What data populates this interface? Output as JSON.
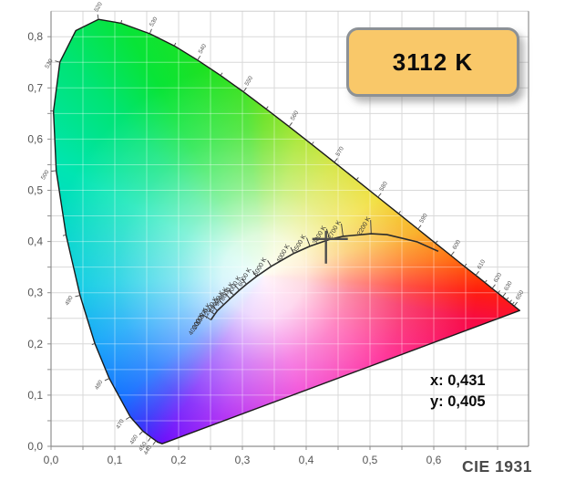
{
  "badge": {
    "label": "3112 K"
  },
  "readout": {
    "x": "x: 0,431",
    "y": "y: 0,405"
  },
  "footer": {
    "label": "CIE 1931"
  },
  "colors": {
    "badge_bg": "#F9C869",
    "badge_border": "#8C9196",
    "grid": "#D9D9D9",
    "grid_on_color": "rgba(255,255,255,0.38)",
    "axis": "#8F8F8F",
    "cross": "#4D4D4D",
    "outline": "#1A1A1A",
    "locus_line": "#2B2B2B"
  },
  "chart_data": {
    "type": "chromaticity-diagram",
    "title": "CIE 1931",
    "measured_point": {
      "cct": "3112 K",
      "x": 0.431,
      "y": 0.405
    },
    "x_axis": {
      "min": 0,
      "max": 0.75,
      "grid_step": 0.05,
      "label_step": 0.1,
      "tick_labels": [
        "0,0",
        "0,1",
        "0,2",
        "0,3",
        "0,4",
        "0,5",
        "0,6"
      ]
    },
    "y_axis": {
      "min": 0,
      "max": 0.85,
      "grid_step": 0.05,
      "label_step": 0.1,
      "tick_labels": [
        "0,0",
        "0,1",
        "0,2",
        "0,3",
        "0,4",
        "0,5",
        "0,6",
        "0,7",
        "0,8"
      ]
    },
    "neutral_center": {
      "x": 0.333,
      "y": 0.333
    },
    "spectral_locus": [
      {
        "nm": 380,
        "x": 0.1741,
        "y": 0.005
      },
      {
        "nm": 410,
        "x": 0.1666,
        "y": 0.0086
      },
      {
        "nm": 440,
        "x": 0.1644,
        "y": 0.0109
      },
      {
        "nm": 450,
        "x": 0.1566,
        "y": 0.0177
      },
      {
        "nm": 460,
        "x": 0.144,
        "y": 0.0297
      },
      {
        "nm": 470,
        "x": 0.1241,
        "y": 0.0578
      },
      {
        "nm": 480,
        "x": 0.0913,
        "y": 0.1327
      },
      {
        "nm": 485,
        "x": 0.0687,
        "y": 0.2007
      },
      {
        "nm": 490,
        "x": 0.0454,
        "y": 0.295
      },
      {
        "nm": 495,
        "x": 0.0235,
        "y": 0.4127
      },
      {
        "nm": 500,
        "x": 0.0082,
        "y": 0.5384
      },
      {
        "nm": 505,
        "x": 0.0039,
        "y": 0.6548
      },
      {
        "nm": 510,
        "x": 0.0139,
        "y": 0.7502
      },
      {
        "nm": 515,
        "x": 0.0389,
        "y": 0.812
      },
      {
        "nm": 520,
        "x": 0.0743,
        "y": 0.8338
      },
      {
        "nm": 525,
        "x": 0.1096,
        "y": 0.8263
      },
      {
        "nm": 530,
        "x": 0.1547,
        "y": 0.8059
      },
      {
        "nm": 535,
        "x": 0.1931,
        "y": 0.7822
      },
      {
        "nm": 540,
        "x": 0.2296,
        "y": 0.7543
      },
      {
        "nm": 545,
        "x": 0.2658,
        "y": 0.7243
      },
      {
        "nm": 550,
        "x": 0.3016,
        "y": 0.6923
      },
      {
        "nm": 555,
        "x": 0.3373,
        "y": 0.6588
      },
      {
        "nm": 560,
        "x": 0.3731,
        "y": 0.6245
      },
      {
        "nm": 565,
        "x": 0.4087,
        "y": 0.5896
      },
      {
        "nm": 570,
        "x": 0.4441,
        "y": 0.5547
      },
      {
        "nm": 575,
        "x": 0.4788,
        "y": 0.5202
      },
      {
        "nm": 580,
        "x": 0.5125,
        "y": 0.4866
      },
      {
        "nm": 585,
        "x": 0.5448,
        "y": 0.4544
      },
      {
        "nm": 590,
        "x": 0.5752,
        "y": 0.4242
      },
      {
        "nm": 595,
        "x": 0.6029,
        "y": 0.3965
      },
      {
        "nm": 600,
        "x": 0.627,
        "y": 0.3725
      },
      {
        "nm": 605,
        "x": 0.6482,
        "y": 0.3514
      },
      {
        "nm": 610,
        "x": 0.6658,
        "y": 0.334
      },
      {
        "nm": 615,
        "x": 0.6801,
        "y": 0.3197
      },
      {
        "nm": 620,
        "x": 0.6915,
        "y": 0.3083
      },
      {
        "nm": 625,
        "x": 0.7006,
        "y": 0.2993
      },
      {
        "nm": 630,
        "x": 0.7079,
        "y": 0.292
      },
      {
        "nm": 635,
        "x": 0.714,
        "y": 0.2859
      },
      {
        "nm": 640,
        "x": 0.719,
        "y": 0.2809
      },
      {
        "nm": 645,
        "x": 0.723,
        "y": 0.277
      },
      {
        "nm": 650,
        "x": 0.726,
        "y": 0.274
      },
      {
        "nm": 700,
        "x": 0.7347,
        "y": 0.2653
      }
    ],
    "wavelength_labels": [
      440,
      450,
      460,
      470,
      480,
      490,
      500,
      510,
      520,
      530,
      540,
      550,
      560,
      570,
      580,
      590,
      600,
      610,
      620,
      630,
      650
    ],
    "wavelength_minor_ticks": [
      485,
      495,
      505,
      525,
      535,
      545,
      555,
      565,
      575,
      585,
      595,
      605,
      615,
      625,
      635,
      640,
      645
    ],
    "planckian_locus": [
      {
        "t": "40000 K",
        "x": 0.2506,
        "y": 0.2469
      },
      {
        "t": "20000 K",
        "x": 0.2565,
        "y": 0.2577
      },
      {
        "t": "15000 K",
        "x": 0.2607,
        "y": 0.2648
      },
      {
        "t": "12000 K",
        "x": 0.2707,
        "y": 0.2766
      },
      {
        "t": "10000 K",
        "x": 0.2807,
        "y": 0.2884
      },
      {
        "t": "9000 K",
        "x": 0.2866,
        "y": 0.295
      },
      {
        "t": "8000 K",
        "x": 0.2952,
        "y": 0.3048
      },
      {
        "t": "7000 K",
        "x": 0.3064,
        "y": 0.3166
      },
      {
        "t": "6000 K",
        "x": 0.3221,
        "y": 0.3318
      },
      {
        "t": "5000 K",
        "x": 0.3451,
        "y": 0.3516
      },
      {
        "t": "4000 K",
        "x": 0.3805,
        "y": 0.3768
      },
      {
        "t": "3500 K",
        "x": 0.4059,
        "y": 0.3907
      },
      {
        "t": "3000 K",
        "x": 0.4369,
        "y": 0.4041
      },
      {
        "t": "2700 K",
        "x": 0.4578,
        "y": 0.4101
      },
      {
        "t": "2200 K",
        "x": 0.5018,
        "y": 0.4152
      },
      {
        "t": "",
        "x": 0.5267,
        "y": 0.4133
      },
      {
        "t": "",
        "x": 0.574,
        "y": 0.3992
      },
      {
        "t": "",
        "x": 0.607,
        "y": 0.381
      }
    ],
    "gamut_hues": [
      {
        "deg": 0,
        "color": "#52DE00"
      },
      {
        "deg": 14,
        "color": "#93E000"
      },
      {
        "deg": 32,
        "color": "#C6DC00"
      },
      {
        "deg": 56,
        "color": "#EDD500"
      },
      {
        "deg": 74,
        "color": "#F8A200"
      },
      {
        "deg": 85,
        "color": "#FF6400"
      },
      {
        "deg": 94,
        "color": "#FF1E0E"
      },
      {
        "deg": 102,
        "color": "#F70A45"
      },
      {
        "deg": 125,
        "color": "#FF0082"
      },
      {
        "deg": 163,
        "color": "#EC00C8"
      },
      {
        "deg": 196,
        "color": "#9D00F2"
      },
      {
        "deg": 211,
        "color": "#6400FA"
      },
      {
        "deg": 219,
        "color": "#2B2BFA"
      },
      {
        "deg": 229,
        "color": "#0063FF"
      },
      {
        "deg": 249,
        "color": "#009FF8"
      },
      {
        "deg": 267,
        "color": "#00C9E2"
      },
      {
        "deg": 298,
        "color": "#00E5B2"
      },
      {
        "deg": 318,
        "color": "#00E473"
      },
      {
        "deg": 331,
        "color": "#08E437"
      },
      {
        "deg": 354,
        "color": "#2FE012"
      },
      {
        "deg": 360,
        "color": "#52DE00"
      }
    ],
    "white_radial": [
      {
        "r": 0,
        "a": 0.96
      },
      {
        "r": 45,
        "a": 0.85
      },
      {
        "r": 95,
        "a": 0.52
      },
      {
        "r": 160,
        "a": 0.22
      },
      {
        "r": 235,
        "a": 0
      }
    ]
  }
}
